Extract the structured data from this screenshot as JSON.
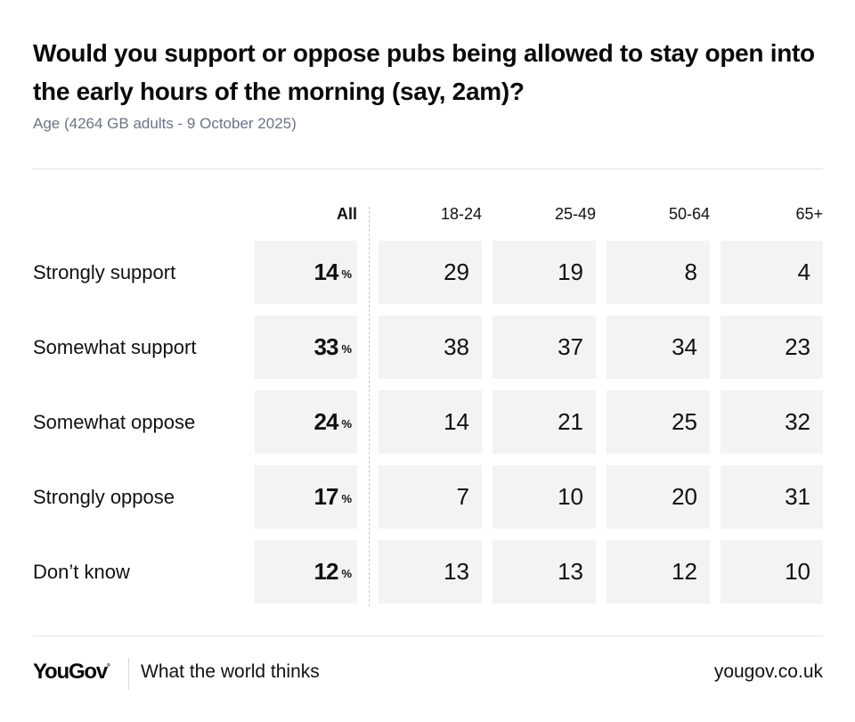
{
  "header": {
    "title": "Would you support or oppose pubs being allowed to stay open into the early hours of the morning (say, 2am)?",
    "subtitle": "Age (4264 GB adults - 9 October 2025)"
  },
  "footer": {
    "logo": "YouGov",
    "tagline": "What the world thinks",
    "url": "yougov.co.uk"
  },
  "chart_data": {
    "type": "table",
    "title": "Would you support or oppose pubs being allowed to stay open into the early hours of the morning (say, 2am)?",
    "subtitle": "Age (4264 GB adults - 9 October 2025)",
    "unit": "%",
    "columns": [
      "All",
      "18-24",
      "25-49",
      "50-64",
      "65+"
    ],
    "rows": [
      {
        "label": "Strongly support",
        "values": [
          14,
          29,
          19,
          8,
          4
        ]
      },
      {
        "label": "Somewhat support",
        "values": [
          33,
          38,
          37,
          34,
          23
        ]
      },
      {
        "label": "Somewhat oppose",
        "values": [
          24,
          14,
          21,
          25,
          32
        ]
      },
      {
        "label": "Strongly oppose",
        "values": [
          17,
          7,
          10,
          20,
          31
        ]
      },
      {
        "label": "Don’t know",
        "values": [
          12,
          13,
          13,
          12,
          10
        ]
      }
    ],
    "colors": {
      "cell_background": "#f2f3f5",
      "subtitle": "#6b7385",
      "text": "#111111"
    }
  }
}
